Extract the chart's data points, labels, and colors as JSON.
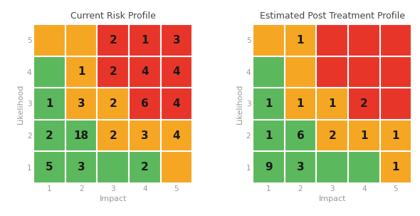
{
  "title1": "Current Risk Profile",
  "title2": "Estimated Post Treatment Profile",
  "xlabel": "Impact",
  "ylabel": "Likelihood",
  "axes": [
    "1",
    "2",
    "3",
    "4",
    "5"
  ],
  "colors": {
    "green": "#5cb85c",
    "orange": "#f5a623",
    "red": "#e8352a"
  },
  "chart1": {
    "grid": [
      [
        "green",
        "green",
        "green",
        "green",
        "orange"
      ],
      [
        "green",
        "green",
        "orange",
        "orange",
        "orange"
      ],
      [
        "green",
        "orange",
        "orange",
        "red",
        "red"
      ],
      [
        "green",
        "orange",
        "red",
        "red",
        "red"
      ],
      [
        "orange",
        "orange",
        "red",
        "red",
        "red"
      ]
    ],
    "values": [
      [
        "5",
        "3",
        "",
        "2",
        ""
      ],
      [
        "2",
        "18",
        "2",
        "3",
        "4"
      ],
      [
        "1",
        "3",
        "2",
        "6",
        "4"
      ],
      [
        "",
        "1",
        "2",
        "4",
        "4"
      ],
      [
        "",
        "",
        "2",
        "1",
        "3"
      ]
    ]
  },
  "chart2": {
    "grid": [
      [
        "green",
        "green",
        "green",
        "green",
        "orange"
      ],
      [
        "green",
        "green",
        "orange",
        "orange",
        "orange"
      ],
      [
        "green",
        "orange",
        "orange",
        "red",
        "red"
      ],
      [
        "green",
        "orange",
        "red",
        "red",
        "red"
      ],
      [
        "orange",
        "orange",
        "red",
        "red",
        "red"
      ]
    ],
    "values": [
      [
        "9",
        "3",
        "",
        "",
        "1"
      ],
      [
        "1",
        "6",
        "2",
        "1",
        "1"
      ],
      [
        "1",
        "1",
        "1",
        "2",
        ""
      ],
      [
        "",
        "",
        "",
        "",
        ""
      ],
      [
        "",
        "1",
        "",
        "",
        ""
      ]
    ]
  },
  "bg_color": "#ffffff",
  "text_color": "#1a1a1a",
  "title_fontsize": 9,
  "label_fontsize": 8,
  "tick_fontsize": 7.5,
  "value_fontsize": 11,
  "cell_linewidth": 1.5,
  "cell_linecolor": "#ffffff"
}
